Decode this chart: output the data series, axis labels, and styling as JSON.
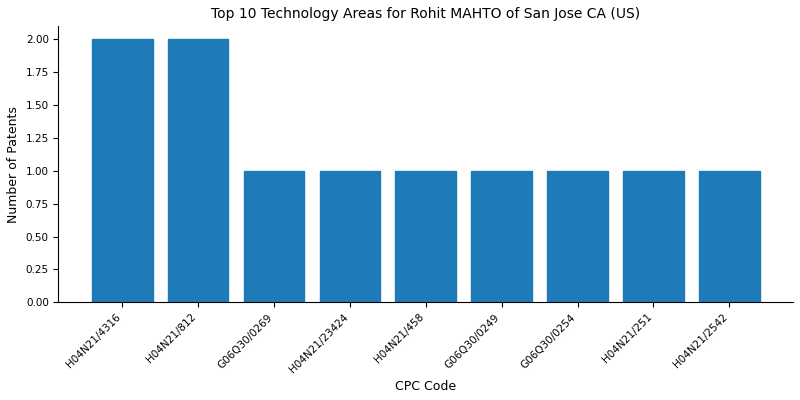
{
  "title": "Top 10 Technology Areas for Rohit MAHTO of San Jose CA (US)",
  "xlabel": "CPC Code",
  "ylabel": "Number of Patents",
  "categories": [
    "H04N21/4316",
    "H04N21/812",
    "G06Q30/0269",
    "H04N21/23424",
    "H04N21/458",
    "G06Q30/0249",
    "G06Q30/0254",
    "H04N21/251",
    "H04N21/2542"
  ],
  "values": [
    2,
    2,
    1,
    1,
    1,
    1,
    1,
    1,
    1
  ],
  "bar_color": "#1f7ab8",
  "ylim": [
    0,
    2.1
  ],
  "yticks": [
    0.0,
    0.25,
    0.5,
    0.75,
    1.0,
    1.25,
    1.5,
    1.75,
    2.0
  ],
  "figsize": [
    8.0,
    4.0
  ],
  "dpi": 100,
  "title_fontsize": 10,
  "axis_label_fontsize": 9,
  "tick_fontsize": 7.5
}
